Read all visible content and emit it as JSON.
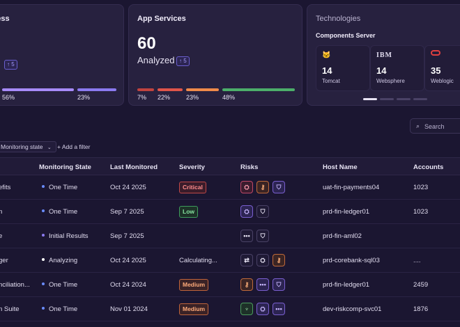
{
  "cards": {
    "progress": {
      "title": "ress",
      "pill": "↑ 5",
      "pct": [
        "56%",
        "23%"
      ],
      "colors": [
        "#a78bfa",
        "#8b7af0"
      ]
    },
    "app_services": {
      "title": "App Services",
      "count": "60",
      "label": "Analyzed",
      "pill": "↑ 5",
      "segments": [
        {
          "pct": "7%",
          "color": "#c0433f"
        },
        {
          "pct": "22%",
          "color": "#e0554a"
        },
        {
          "pct": "23%",
          "color": "#f08a4a"
        },
        {
          "pct": "48%",
          "color": "#4caf6a"
        }
      ]
    },
    "technologies": {
      "title": "Technologies",
      "subtitle": "Components Server",
      "components": [
        {
          "logo": "tomcat-icon",
          "glyph": "🐱",
          "count": "14",
          "name": "Tomcat"
        },
        {
          "logo": "ibm-icon",
          "glyph": "IBM",
          "count": "14",
          "name": "Websphere"
        },
        {
          "logo": "oracle-icon",
          "glyph": "▭",
          "count": "35",
          "name": "Weblogic"
        }
      ]
    }
  },
  "toolbar": {
    "search_placeholder": "Search",
    "filter_chip": "Monitoring state",
    "add_filter": "+ Add a filter"
  },
  "table": {
    "headers": [
      "Monitoring State",
      "Last Monitored",
      "Severity",
      "Risks",
      "Host Name",
      "Accounts"
    ],
    "rows": [
      {
        "name": "efits",
        "state": "One Time",
        "state_color": "#6a8cff",
        "date": "Oct 24 2025",
        "severity": "Critical",
        "sev_class": "critical",
        "risks": [
          [
            "red",
            "⛭"
          ],
          [
            "orange",
            "⚷"
          ],
          [
            "purple",
            "⛉"
          ]
        ],
        "host": "uat-fin-payments04",
        "accounts": "1023"
      },
      {
        "name": "n",
        "state": "One Time",
        "state_color": "#6a8cff",
        "date": "Sep 7 2025",
        "severity": "Low",
        "sev_class": "low",
        "risks": [
          [
            "purple",
            "⛭"
          ],
          [
            "gray",
            "⛉"
          ]
        ],
        "host": "prd-fin-ledger01",
        "accounts": "1023"
      },
      {
        "name": "e",
        "state": "Initial Results",
        "state_color": "#8b7af0",
        "date": "Sep 7 2025",
        "severity": "",
        "sev_class": "",
        "risks": [
          [
            "gray",
            "•••"
          ],
          [
            "gray",
            "⛉"
          ]
        ],
        "host": "prd-fin-aml02",
        "accounts": ""
      },
      {
        "name": "ger",
        "state": "Analyzing",
        "state_color": "#ffffff",
        "date": "Oct 24 2025",
        "severity": "Calculating...",
        "sev_class": "",
        "risks": [
          [
            "gray",
            "⇄"
          ],
          [
            "gray",
            "⛭"
          ],
          [
            "orange",
            "⚷"
          ]
        ],
        "host": "prd-corebank-sql03",
        "accounts": "...."
      },
      {
        "name": "nciliation...",
        "state": "One Time",
        "state_color": "#6a8cff",
        "date": "Oct 24 2024",
        "severity": "Medium",
        "sev_class": "medium",
        "risks": [
          [
            "orange",
            "⚷"
          ],
          [
            "purple",
            "•••"
          ],
          [
            "purple",
            "⛉"
          ]
        ],
        "host": "prd-fin-ledger01",
        "accounts": "2459"
      },
      {
        "name": "n Suite",
        "state": "One Time",
        "state_color": "#6a8cff",
        "date": "Nov 01 2024",
        "severity": "Medium",
        "sev_class": "medium",
        "risks": [
          [
            "green",
            "♆"
          ],
          [
            "purple",
            "⛭"
          ],
          [
            "purple",
            "•••"
          ]
        ],
        "host": "dev-riskcomp-svc01",
        "accounts": "1876"
      }
    ]
  }
}
